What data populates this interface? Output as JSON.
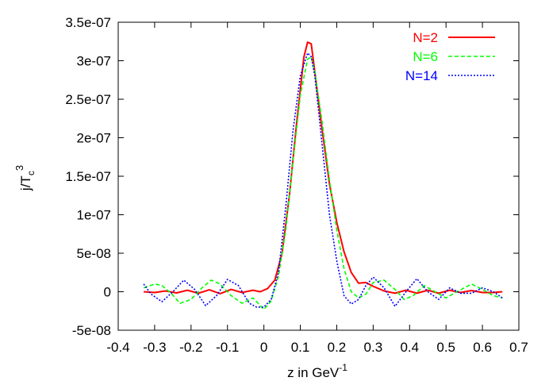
{
  "chart_data": {
    "type": "line",
    "xlabel": "z in GeV",
    "xlabel_exponent": "-1",
    "ylabel": "j/T",
    "ylabel_subscript": "c",
    "ylabel_exponent": "3",
    "xlim": [
      -0.4,
      0.7
    ],
    "ylim": [
      -5e-08,
      3.5e-07
    ],
    "x_ticks": [
      "-0.4",
      "-0.3",
      "-0.2",
      "-0.1",
      "0",
      "0.1",
      "0.2",
      "0.3",
      "0.4",
      "0.5",
      "0.6",
      "0.7"
    ],
    "y_ticks": [
      "-5e-08",
      "0",
      "5e-08",
      "1e-07",
      "1.5e-07",
      "2e-07",
      "2.5e-07",
      "3e-07",
      "3.5e-07"
    ],
    "x_tick_values": [
      -0.4,
      -0.3,
      -0.2,
      -0.1,
      0,
      0.1,
      0.2,
      0.3,
      0.4,
      0.5,
      0.6,
      0.7
    ],
    "y_tick_values": [
      -5e-08,
      0,
      5e-08,
      1e-07,
      1.5e-07,
      2e-07,
      2.5e-07,
      3e-07,
      3.5e-07
    ],
    "grid": false,
    "legend_position": "top-right",
    "series": [
      {
        "name": "N=2",
        "color": "#ff0000",
        "dash": "solid",
        "x": [
          -0.33,
          -0.3,
          -0.27,
          -0.24,
          -0.21,
          -0.18,
          -0.15,
          -0.12,
          -0.09,
          -0.06,
          -0.03,
          -0.01,
          0.01,
          0.03,
          0.05,
          0.07,
          0.09,
          0.11,
          0.12,
          0.13,
          0.14,
          0.16,
          0.18,
          0.2,
          0.22,
          0.24,
          0.26,
          0.28,
          0.3,
          0.33,
          0.36,
          0.39,
          0.42,
          0.45,
          0.48,
          0.51,
          0.54,
          0.57,
          0.6,
          0.63,
          0.655
        ],
        "y": [
          0,
          -1e-09,
          1e-09,
          -1.5e-09,
          2e-09,
          -2e-09,
          2.5e-09,
          -2.5e-09,
          3e-09,
          -1e-09,
          2e-09,
          0,
          4e-09,
          1.5e-08,
          5e-08,
          1.25e-07,
          2.2e-07,
          3.05e-07,
          3.24e-07,
          3.22e-07,
          2.85e-07,
          2.1e-07,
          1.4e-07,
          9e-08,
          5.2e-08,
          2.5e-08,
          1.1e-08,
          1.2e-08,
          7e-09,
          1e-09,
          -2e-09,
          2e-09,
          -2e-09,
          2e-09,
          -2e-09,
          2e-09,
          -1e-09,
          1.5e-09,
          -1e-09,
          -1e-09,
          0
        ]
      },
      {
        "name": "N=6",
        "color": "#00ff00",
        "dash": "5,3",
        "x": [
          -0.33,
          -0.3,
          -0.28,
          -0.255,
          -0.23,
          -0.2,
          -0.17,
          -0.145,
          -0.12,
          -0.09,
          -0.06,
          -0.03,
          0.0,
          0.02,
          0.04,
          0.06,
          0.08,
          0.1,
          0.12,
          0.13,
          0.14,
          0.16,
          0.18,
          0.2,
          0.22,
          0.24,
          0.26,
          0.28,
          0.3,
          0.33,
          0.36,
          0.385,
          0.41,
          0.44,
          0.47,
          0.5,
          0.53,
          0.57,
          0.6,
          0.63,
          0.655
        ],
        "y": [
          5e-09,
          1e-08,
          8e-09,
          -2e-09,
          -1.5e-08,
          -1e-08,
          5e-09,
          1.5e-08,
          1e-08,
          -5e-09,
          -1.5e-08,
          -8e-09,
          -2.3e-08,
          -1.2e-08,
          2e-08,
          8e-08,
          1.7e-07,
          2.55e-07,
          3.02e-07,
          3.05e-07,
          2.85e-07,
          2.2e-07,
          1.45e-07,
          8e-08,
          3e-08,
          0,
          -8e-09,
          -3e-09,
          1.2e-08,
          1.5e-08,
          3e-09,
          -1e-08,
          -5e-09,
          8e-09,
          0,
          -8e-09,
          0,
          1e-08,
          3e-09,
          -5e-09,
          -8e-09
        ]
      },
      {
        "name": "N=14",
        "color": "#0000ff",
        "dash": "2,2",
        "x": [
          -0.33,
          -0.31,
          -0.28,
          -0.25,
          -0.22,
          -0.19,
          -0.16,
          -0.13,
          -0.1,
          -0.07,
          -0.04,
          -0.02,
          0.0,
          0.02,
          0.04,
          0.06,
          0.08,
          0.1,
          0.12,
          0.13,
          0.14,
          0.16,
          0.18,
          0.2,
          0.22,
          0.24,
          0.26,
          0.28,
          0.3,
          0.33,
          0.36,
          0.39,
          0.42,
          0.45,
          0.48,
          0.51,
          0.54,
          0.57,
          0.6,
          0.63,
          0.655
        ],
        "y": [
          1e-08,
          -3e-09,
          -1.3e-08,
          0,
          1.5e-08,
          3e-09,
          -1.8e-08,
          -5e-09,
          1.6e-08,
          8e-09,
          -1.5e-08,
          -2e-08,
          -2e-08,
          -1e-08,
          2.5e-08,
          1.1e-07,
          2.1e-07,
          2.8e-07,
          3.1e-07,
          3.05e-07,
          2.8e-07,
          1.9e-07,
          1e-07,
          4e-08,
          -5e-09,
          -1.6e-08,
          -1e-08,
          8e-09,
          1.9e-08,
          5e-09,
          -1.9e-08,
          0,
          1.7e-08,
          0,
          -1e-08,
          5e-09,
          -2e-09,
          -2e-09,
          5e-09,
          0,
          -8e-09
        ]
      }
    ]
  }
}
